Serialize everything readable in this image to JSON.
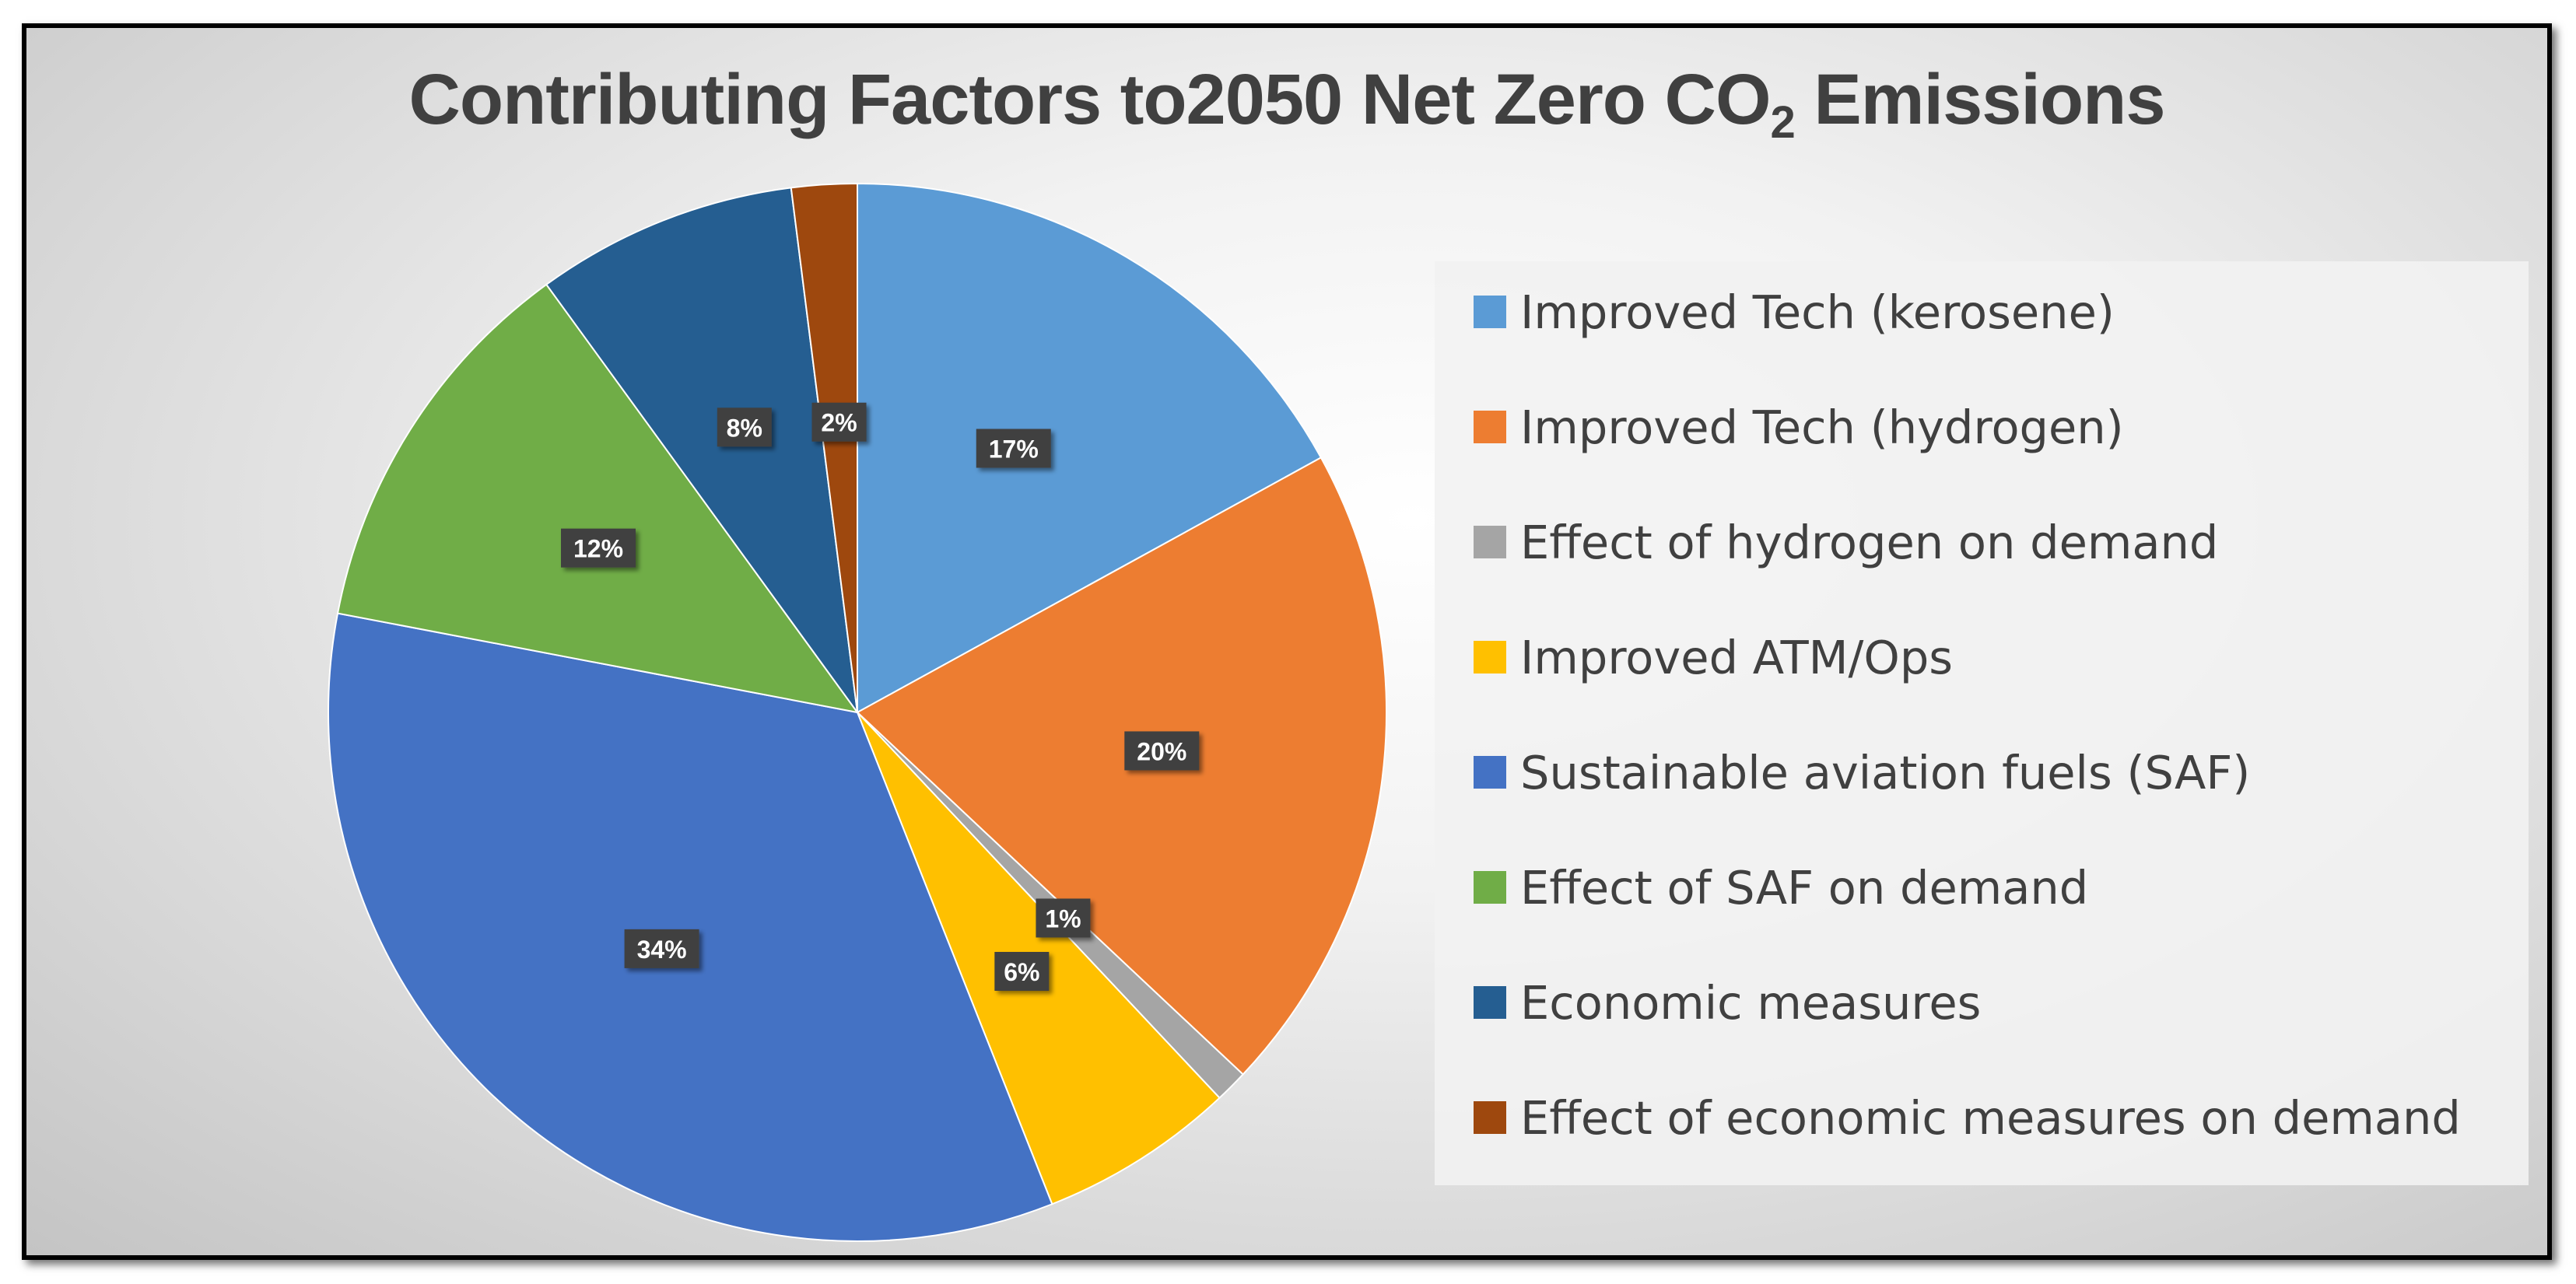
{
  "chart_data": {
    "type": "pie",
    "title_main": "Contributing Factors to2050 Net Zero CO",
    "title_sub": "2",
    "title_end": " Emissions",
    "legend_position": "right",
    "slices": [
      {
        "name": "Improved Tech (kerosene)",
        "value": 17,
        "label": "17%",
        "color": "#5b9bd5"
      },
      {
        "name": "Improved Tech (hydrogen)",
        "value": 20,
        "label": "20%",
        "color": "#ed7d31"
      },
      {
        "name": "Effect of hydrogen on demand",
        "value": 1,
        "label": "1%",
        "color": "#a5a5a5"
      },
      {
        "name": "Improved ATM/Ops",
        "value": 6,
        "label": "6%",
        "color": "#ffc000"
      },
      {
        "name": "Sustainable aviation fuels (SAF)",
        "value": 34,
        "label": "34%",
        "color": "#4472c4"
      },
      {
        "name": "Effect of SAF on demand",
        "value": 12,
        "label": "12%",
        "color": "#70ad47"
      },
      {
        "name": "Economic measures",
        "value": 8,
        "label": "8%",
        "color": "#255e91"
      },
      {
        "name": "Effect of economic measures on demand",
        "value": 2,
        "label": "2%",
        "color": "#9e480e"
      }
    ]
  }
}
